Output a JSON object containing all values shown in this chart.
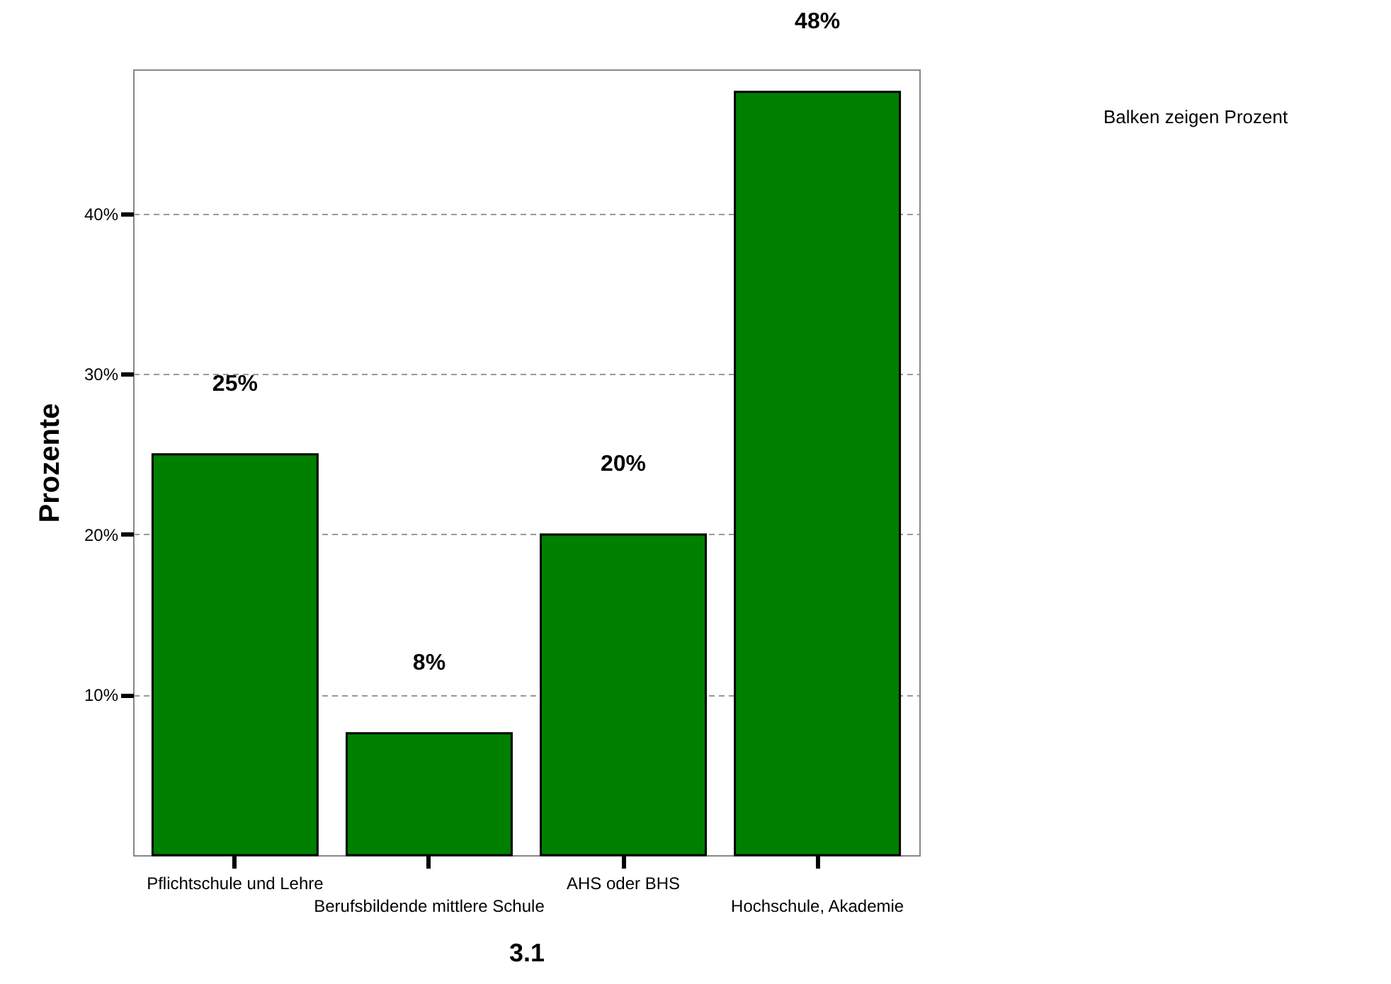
{
  "chart_data": {
    "type": "bar",
    "categories": [
      "Pflichtschule und Lehre",
      "Berufsbildende mittlere Schule",
      "AHS oder BHS",
      "Hochschule, Akademie"
    ],
    "values": [
      25,
      7.6,
      20,
      47.6
    ],
    "value_labels": [
      "25%",
      "8%",
      "20%",
      "48%"
    ],
    "color": "#008000",
    "xlabel": "3.1",
    "ylabel": "Prozente",
    "ylim": [
      0,
      49
    ],
    "yticks": [
      {
        "value": 10,
        "label": "10%"
      },
      {
        "value": 20,
        "label": "20%"
      },
      {
        "value": 30,
        "label": "30%"
      },
      {
        "value": 40,
        "label": "40%"
      }
    ],
    "grid": "y",
    "annotations": [
      "Balken zeigen Prozent"
    ]
  }
}
